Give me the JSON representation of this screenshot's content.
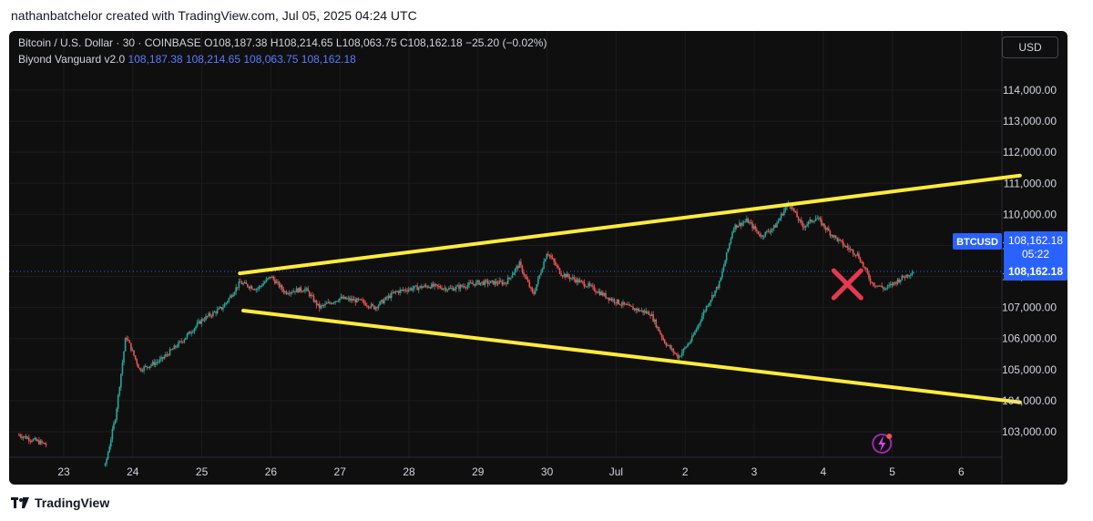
{
  "header": {
    "caption": "nathanbatchelor created with TradingView.com, Jul 05, 2025 04:24 UTC"
  },
  "legend": {
    "symbol": "Bitcoin / U.S. Dollar · 30 · COINBASE",
    "o_label": "O",
    "o": "108,187.38",
    "h_label": "H",
    "h": "108,214.65",
    "l_label": "L",
    "l": "108,063.75",
    "c_label": "C",
    "c": "108,162.18",
    "change": "−25.20 (−0.02%)",
    "indicator_name": "Biyond Vanguard v2.0",
    "indicator_values": [
      "108,187.38",
      "108,214.65",
      "108,063.75",
      "108,162.18"
    ]
  },
  "currency_button": "USD",
  "price_tag": {
    "symbol": "BTCUSD",
    "price": "108,162.18",
    "countdown": "05:22",
    "price2": "108,162.18"
  },
  "footer": {
    "brand": "TradingView"
  },
  "colors": {
    "background": "#0f0f0f",
    "up": "#26a69a",
    "down": "#ef5350",
    "trendline": "#ffeb3b",
    "marker": "#e53950",
    "price_tag": "#2962ff"
  },
  "chart_data": {
    "type": "candlestick",
    "symbol": "BTCUSD",
    "interval": "30",
    "exchange": "COINBASE",
    "x_ticks": [
      "23",
      "24",
      "25",
      "26",
      "27",
      "28",
      "29",
      "30",
      "Jul",
      "2",
      "3",
      "4",
      "5",
      "6"
    ],
    "y_ticks": [
      103000,
      104000,
      105000,
      106000,
      107000,
      108000,
      109000,
      110000,
      111000,
      112000,
      113000,
      114000
    ],
    "y_tick_labels": [
      "103,000.00",
      "104,000.00",
      "105,000.00",
      "106,000.00",
      "107,000.00",
      "108,000.00",
      "109,000.00",
      "110,000.00",
      "111,000.00",
      "112,000.00",
      "113,000.00",
      "114,000.00"
    ],
    "ylim": [
      102300,
      115000
    ],
    "xlim": [
      22.3,
      6.4
    ],
    "price_path": [
      [
        22.35,
        102900
      ],
      [
        22.6,
        102700
      ],
      [
        23.6,
        101900
      ],
      [
        23.75,
        103500
      ],
      [
        23.9,
        106100
      ],
      [
        24.1,
        105000
      ],
      [
        24.4,
        105300
      ],
      [
        24.7,
        105900
      ],
      [
        25.0,
        106600
      ],
      [
        25.3,
        107000
      ],
      [
        25.55,
        107800
      ],
      [
        25.8,
        107600
      ],
      [
        26.0,
        108000
      ],
      [
        26.2,
        107500
      ],
      [
        26.5,
        107600
      ],
      [
        26.7,
        107000
      ],
      [
        27.0,
        107300
      ],
      [
        27.3,
        107200
      ],
      [
        27.5,
        107000
      ],
      [
        27.8,
        107500
      ],
      [
        28.0,
        107600
      ],
      [
        28.3,
        107700
      ],
      [
        28.6,
        107600
      ],
      [
        29.0,
        107800
      ],
      [
        29.4,
        107800
      ],
      [
        29.6,
        108400
      ],
      [
        29.8,
        107400
      ],
      [
        30.0,
        108800
      ],
      [
        30.2,
        108100
      ],
      [
        30.4,
        107900
      ],
      [
        30.6,
        107700
      ],
      [
        30.9,
        107300
      ],
      [
        31.2,
        107000
      ],
      [
        31.5,
        106800
      ],
      [
        31.7,
        105900
      ],
      [
        31.9,
        105400
      ],
      [
        32.1,
        106000
      ],
      [
        32.3,
        107000
      ],
      [
        32.5,
        107800
      ],
      [
        32.7,
        109600
      ],
      [
        32.9,
        109800
      ],
      [
        33.1,
        109300
      ],
      [
        33.3,
        109600
      ],
      [
        33.5,
        110400
      ],
      [
        33.7,
        109600
      ],
      [
        33.9,
        109900
      ],
      [
        34.1,
        109400
      ],
      [
        34.3,
        109000
      ],
      [
        34.5,
        108700
      ],
      [
        34.7,
        107800
      ],
      [
        34.9,
        107600
      ],
      [
        35.1,
        107900
      ],
      [
        35.3,
        108162
      ]
    ],
    "last_price": 108162.18,
    "trendlines": [
      {
        "x1": 25.55,
        "y1": 108100,
        "x2": 36.85,
        "y2": 111250
      },
      {
        "x1": 25.6,
        "y1": 106900,
        "x2": 36.85,
        "y2": 103950
      }
    ],
    "annotation_marker": {
      "x": 34.35,
      "y": 107750,
      "shape": "x"
    },
    "price_line": 108162.18
  }
}
